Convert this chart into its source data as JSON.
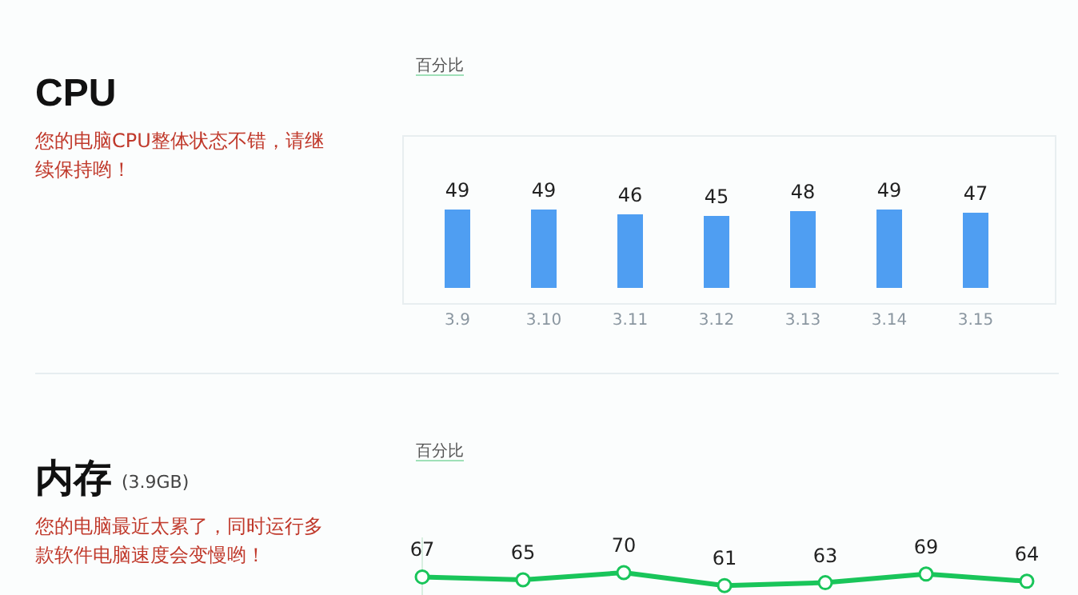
{
  "chart_data": [
    {
      "type": "other",
      "title": "CPU",
      "annotations": [
        "您的电脑CPU整体状态不错，请继续保持哟！"
      ]
    },
    {
      "type": "bar",
      "ylabel": "百分比",
      "categories": [
        "3.9",
        "3.10",
        "3.11",
        "3.12",
        "3.13",
        "3.14",
        "3.15"
      ],
      "values": [
        49,
        49,
        46,
        45,
        48,
        49,
        47
      ],
      "color": "#4f9ef2",
      "data_labels": true
    },
    {
      "type": "other",
      "title": "内存",
      "subtitle": "(3.9GB)",
      "annotations": [
        "您的电脑最近太累了，同时运行多款软件电脑速度会变慢哟！"
      ]
    },
    {
      "type": "line",
      "ylabel": "百分比",
      "categories": [
        null,
        null,
        null,
        null,
        null,
        null,
        null
      ],
      "values": [
        67,
        65,
        70,
        61,
        63,
        69,
        64
      ],
      "color": "#19c55a",
      "marker": "circle",
      "data_labels": true
    }
  ]
}
